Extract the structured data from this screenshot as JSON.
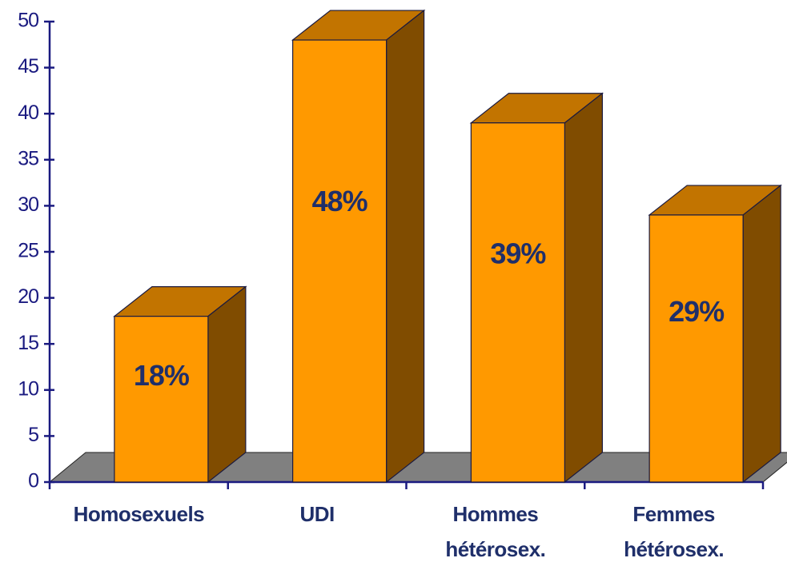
{
  "chart_data": {
    "type": "bar3d",
    "categories": [
      "Homosexuels",
      "UDI",
      "Hommes hétérosex.",
      "Femmes hétérosex."
    ],
    "values": [
      18,
      48,
      39,
      29
    ],
    "value_labels": [
      "18%",
      "48%",
      "39%",
      "29%"
    ],
    "colors": {
      "front": "#FF9900",
      "top": "#C27400",
      "side": "#804C00",
      "floor": "#808080",
      "axis": "#1A1A80"
    },
    "ylim": [
      0,
      50
    ],
    "yticks": [
      0,
      5,
      10,
      15,
      20,
      25,
      30,
      35,
      40,
      45,
      50
    ]
  }
}
